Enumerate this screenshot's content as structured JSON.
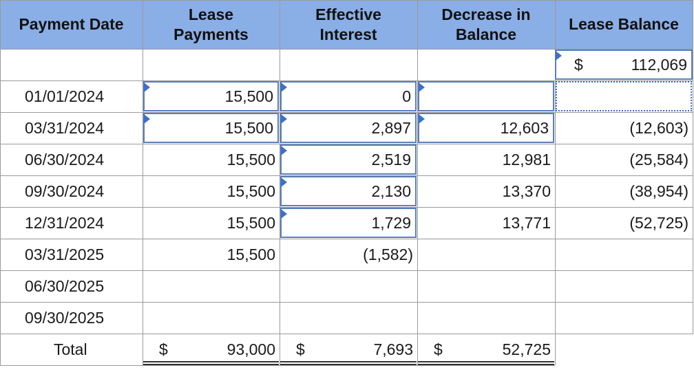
{
  "headers": [
    "Payment Date",
    "Lease\nPayments",
    "Effective\nInterest",
    "Decrease in\nBalance",
    "Lease Balance"
  ],
  "header_lines": [
    [
      "Payment Date"
    ],
    [
      "Lease",
      "Payments"
    ],
    [
      "Effective",
      "Interest"
    ],
    [
      "Decrease in",
      "Balance"
    ],
    [
      "Lease Balance"
    ]
  ],
  "opening": {
    "currency": "$",
    "balance": "112,069"
  },
  "rows": [
    {
      "date": "01/01/2024",
      "payment": "15,500",
      "interest": "0",
      "decrease": "",
      "balance": ""
    },
    {
      "date": "03/31/2024",
      "payment": "15,500",
      "interest": "2,897",
      "decrease": "12,603",
      "balance": "(12,603)"
    },
    {
      "date": "06/30/2024",
      "payment": "15,500",
      "interest": "2,519",
      "decrease": "12,981",
      "balance": "(25,584)"
    },
    {
      "date": "09/30/2024",
      "payment": "15,500",
      "interest": "2,130",
      "decrease": "13,370",
      "balance": "(38,954)"
    },
    {
      "date": "12/31/2024",
      "payment": "15,500",
      "interest": "1,729",
      "decrease": "13,771",
      "balance": "(52,725)"
    },
    {
      "date": "03/31/2025",
      "payment": "15,500",
      "interest": "(1,582)",
      "decrease": "",
      "balance": ""
    },
    {
      "date": "06/30/2025",
      "payment": "",
      "interest": "",
      "decrease": "",
      "balance": ""
    },
    {
      "date": "09/30/2025",
      "payment": "",
      "interest": "",
      "decrease": "",
      "balance": ""
    }
  ],
  "total": {
    "label": "Total",
    "currency": "$",
    "payment": "93,000",
    "interest": "7,693",
    "decrease": "52,725"
  },
  "colors": {
    "header_bg": "#8aaee6",
    "input_border": "#5b7fb8",
    "marker": "#3f6fc9",
    "grid": "#9a9a9a"
  }
}
